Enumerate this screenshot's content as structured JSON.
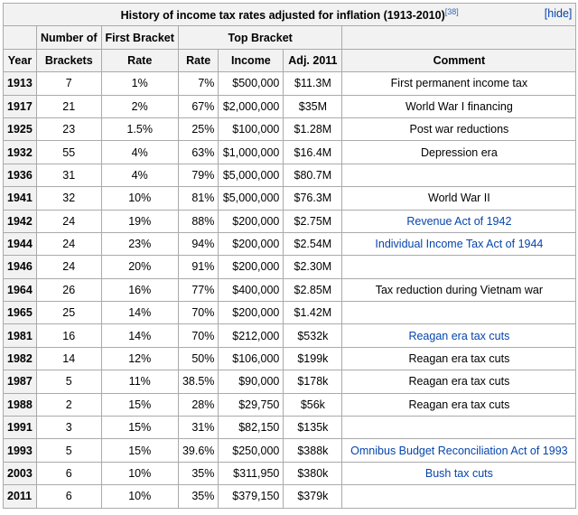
{
  "table": {
    "title": "History of income tax rates adjusted for inflation (1913-2010)",
    "ref": "[38]",
    "hide_label": "[hide]",
    "group_headers": {
      "number_of": "Number of",
      "first_bracket": "First Bracket",
      "top_bracket": "Top Bracket"
    },
    "col_headers": {
      "year": "Year",
      "brackets": "Brackets",
      "first_rate": "Rate",
      "top_rate": "Rate",
      "income": "Income",
      "adj": "Adj. 2011",
      "comment": "Comment"
    },
    "rows": [
      {
        "year": "1913",
        "brackets": "7",
        "first_rate": "1%",
        "top_rate": "7%",
        "income": "$500,000",
        "adj": "$11.3M",
        "comment": "First permanent income tax",
        "comment_is_link": false
      },
      {
        "year": "1917",
        "brackets": "21",
        "first_rate": "2%",
        "top_rate": "67%",
        "income": "$2,000,000",
        "adj": "$35M",
        "comment": "World War I financing",
        "comment_is_link": false
      },
      {
        "year": "1925",
        "brackets": "23",
        "first_rate": "1.5%",
        "top_rate": "25%",
        "income": "$100,000",
        "adj": "$1.28M",
        "comment": "Post war reductions",
        "comment_is_link": false
      },
      {
        "year": "1932",
        "brackets": "55",
        "first_rate": "4%",
        "top_rate": "63%",
        "income": "$1,000,000",
        "adj": "$16.4M",
        "comment": "Depression era",
        "comment_is_link": false
      },
      {
        "year": "1936",
        "brackets": "31",
        "first_rate": "4%",
        "top_rate": "79%",
        "income": "$5,000,000",
        "adj": "$80.7M",
        "comment": "",
        "comment_is_link": false
      },
      {
        "year": "1941",
        "brackets": "32",
        "first_rate": "10%",
        "top_rate": "81%",
        "income": "$5,000,000",
        "adj": "$76.3M",
        "comment": "World War II",
        "comment_is_link": false
      },
      {
        "year": "1942",
        "brackets": "24",
        "first_rate": "19%",
        "top_rate": "88%",
        "income": "$200,000",
        "adj": "$2.75M",
        "comment": "Revenue Act of 1942",
        "comment_is_link": true
      },
      {
        "year": "1944",
        "brackets": "24",
        "first_rate": "23%",
        "top_rate": "94%",
        "income": "$200,000",
        "adj": "$2.54M",
        "comment": "Individual Income Tax Act of 1944",
        "comment_is_link": true
      },
      {
        "year": "1946",
        "brackets": "24",
        "first_rate": "20%",
        "top_rate": "91%",
        "income": "$200,000",
        "adj": "$2.30M",
        "comment": "",
        "comment_is_link": false
      },
      {
        "year": "1964",
        "brackets": "26",
        "first_rate": "16%",
        "top_rate": "77%",
        "income": "$400,000",
        "adj": "$2.85M",
        "comment": "Tax reduction during Vietnam war",
        "comment_is_link": false
      },
      {
        "year": "1965",
        "brackets": "25",
        "first_rate": "14%",
        "top_rate": "70%",
        "income": "$200,000",
        "adj": "$1.42M",
        "comment": "",
        "comment_is_link": false
      },
      {
        "year": "1981",
        "brackets": "16",
        "first_rate": "14%",
        "top_rate": "70%",
        "income": "$212,000",
        "adj": "$532k",
        "comment": "Reagan era tax cuts",
        "comment_is_link": true
      },
      {
        "year": "1982",
        "brackets": "14",
        "first_rate": "12%",
        "top_rate": "50%",
        "income": "$106,000",
        "adj": "$199k",
        "comment": "Reagan era tax cuts",
        "comment_is_link": false
      },
      {
        "year": "1987",
        "brackets": "5",
        "first_rate": "11%",
        "top_rate": "38.5%",
        "income": "$90,000",
        "adj": "$178k",
        "comment": "Reagan era tax cuts",
        "comment_is_link": false
      },
      {
        "year": "1988",
        "brackets": "2",
        "first_rate": "15%",
        "top_rate": "28%",
        "income": "$29,750",
        "adj": "$56k",
        "comment": "Reagan era tax cuts",
        "comment_is_link": false
      },
      {
        "year": "1991",
        "brackets": "3",
        "first_rate": "15%",
        "top_rate": "31%",
        "income": "$82,150",
        "adj": "$135k",
        "comment": "",
        "comment_is_link": false
      },
      {
        "year": "1993",
        "brackets": "5",
        "first_rate": "15%",
        "top_rate": "39.6%",
        "income": "$250,000",
        "adj": "$388k",
        "comment": "Omnibus Budget Reconciliation Act of 1993",
        "comment_is_link": true
      },
      {
        "year": "2003",
        "brackets": "6",
        "first_rate": "10%",
        "top_rate": "35%",
        "income": "$311,950",
        "adj": "$380k",
        "comment": "Bush tax cuts",
        "comment_is_link": true
      },
      {
        "year": "2011",
        "brackets": "6",
        "first_rate": "10%",
        "top_rate": "35%",
        "income": "$379,150",
        "adj": "$379k",
        "comment": "",
        "comment_is_link": false
      }
    ]
  }
}
